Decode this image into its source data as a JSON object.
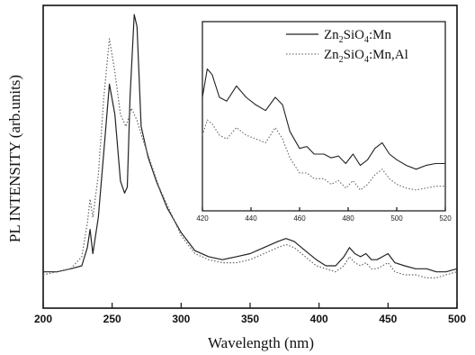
{
  "chart_data": [
    {
      "type": "line",
      "title": "",
      "xlabel": "Wavelength (nm)",
      "ylabel": "PL INTENSITY (arb.units)",
      "xlim": [
        200,
        500
      ],
      "ylim": [
        0,
        1.0
      ],
      "x_ticks": [
        "200",
        "250",
        "300",
        "350",
        "400",
        "450",
        "500"
      ],
      "y_ticks_labeled": false,
      "grid": false,
      "legend_position": "inset-top-right",
      "series": [
        {
          "name": "Zn2SiO4:Mn",
          "style": "solid",
          "color": "#222222",
          "points": [
            [
              200,
              0.12
            ],
            [
              210,
              0.12
            ],
            [
              220,
              0.13
            ],
            [
              228,
              0.14
            ],
            [
              232,
              0.2
            ],
            [
              234,
              0.26
            ],
            [
              236,
              0.18
            ],
            [
              240,
              0.3
            ],
            [
              244,
              0.52
            ],
            [
              248,
              0.74
            ],
            [
              252,
              0.64
            ],
            [
              256,
              0.42
            ],
            [
              259,
              0.38
            ],
            [
              261,
              0.4
            ],
            [
              263,
              0.7
            ],
            [
              266,
              0.97
            ],
            [
              268,
              0.93
            ],
            [
              271,
              0.6
            ],
            [
              276,
              0.5
            ],
            [
              282,
              0.42
            ],
            [
              290,
              0.33
            ],
            [
              300,
              0.25
            ],
            [
              310,
              0.19
            ],
            [
              320,
              0.17
            ],
            [
              330,
              0.16
            ],
            [
              340,
              0.17
            ],
            [
              350,
              0.18
            ],
            [
              360,
              0.2
            ],
            [
              370,
              0.22
            ],
            [
              376,
              0.23
            ],
            [
              382,
              0.22
            ],
            [
              390,
              0.19
            ],
            [
              398,
              0.16
            ],
            [
              405,
              0.14
            ],
            [
              412,
              0.14
            ],
            [
              418,
              0.17
            ],
            [
              422,
              0.2
            ],
            [
              426,
              0.18
            ],
            [
              430,
              0.17
            ],
            [
              434,
              0.18
            ],
            [
              438,
              0.16
            ],
            [
              442,
              0.16
            ],
            [
              446,
              0.17
            ],
            [
              450,
              0.18
            ],
            [
              455,
              0.15
            ],
            [
              462,
              0.14
            ],
            [
              470,
              0.13
            ],
            [
              478,
              0.13
            ],
            [
              485,
              0.12
            ],
            [
              492,
              0.12
            ],
            [
              500,
              0.13
            ]
          ]
        },
        {
          "name": "Zn2SiO4:Mn,Al",
          "style": "dotted",
          "color": "#666666",
          "points": [
            [
              200,
              0.11
            ],
            [
              210,
              0.12
            ],
            [
              220,
              0.13
            ],
            [
              228,
              0.17
            ],
            [
              232,
              0.28
            ],
            [
              234,
              0.36
            ],
            [
              236,
              0.3
            ],
            [
              240,
              0.44
            ],
            [
              244,
              0.7
            ],
            [
              248,
              0.89
            ],
            [
              252,
              0.78
            ],
            [
              256,
              0.64
            ],
            [
              260,
              0.6
            ],
            [
              264,
              0.66
            ],
            [
              268,
              0.62
            ],
            [
              272,
              0.56
            ],
            [
              278,
              0.48
            ],
            [
              284,
              0.4
            ],
            [
              292,
              0.32
            ],
            [
              300,
              0.24
            ],
            [
              310,
              0.18
            ],
            [
              320,
              0.16
            ],
            [
              330,
              0.15
            ],
            [
              340,
              0.15
            ],
            [
              350,
              0.16
            ],
            [
              360,
              0.18
            ],
            [
              370,
              0.2
            ],
            [
              376,
              0.21
            ],
            [
              382,
              0.2
            ],
            [
              390,
              0.17
            ],
            [
              398,
              0.14
            ],
            [
              405,
              0.13
            ],
            [
              412,
              0.12
            ],
            [
              418,
              0.14
            ],
            [
              422,
              0.17
            ],
            [
              426,
              0.15
            ],
            [
              430,
              0.14
            ],
            [
              434,
              0.15
            ],
            [
              438,
              0.13
            ],
            [
              442,
              0.13
            ],
            [
              446,
              0.14
            ],
            [
              450,
              0.15
            ],
            [
              455,
              0.12
            ],
            [
              462,
              0.11
            ],
            [
              470,
              0.11
            ],
            [
              478,
              0.1
            ],
            [
              485,
              0.1
            ],
            [
              492,
              0.11
            ],
            [
              500,
              0.12
            ]
          ]
        }
      ]
    },
    {
      "type": "line",
      "title": "",
      "xlabel": "",
      "ylabel": "",
      "xlim": [
        420,
        520
      ],
      "ylim": [
        0,
        1.0
      ],
      "x_ticks": [
        "420",
        "440",
        "460",
        "480",
        "500",
        "520"
      ],
      "grid": false,
      "series": [
        {
          "name": "Zn2SiO4:Mn",
          "style": "solid",
          "color": "#222222",
          "points": [
            [
              420,
              0.6
            ],
            [
              422,
              0.75
            ],
            [
              424,
              0.72
            ],
            [
              427,
              0.6
            ],
            [
              430,
              0.58
            ],
            [
              434,
              0.66
            ],
            [
              438,
              0.6
            ],
            [
              442,
              0.56
            ],
            [
              446,
              0.53
            ],
            [
              450,
              0.6
            ],
            [
              453,
              0.56
            ],
            [
              456,
              0.42
            ],
            [
              460,
              0.33
            ],
            [
              463,
              0.34
            ],
            [
              466,
              0.3
            ],
            [
              470,
              0.3
            ],
            [
              473,
              0.28
            ],
            [
              476,
              0.29
            ],
            [
              479,
              0.25
            ],
            [
              482,
              0.3
            ],
            [
              485,
              0.24
            ],
            [
              488,
              0.27
            ],
            [
              491,
              0.33
            ],
            [
              494,
              0.36
            ],
            [
              497,
              0.3
            ],
            [
              500,
              0.27
            ],
            [
              504,
              0.24
            ],
            [
              508,
              0.22
            ],
            [
              512,
              0.24
            ],
            [
              516,
              0.25
            ],
            [
              520,
              0.25
            ]
          ]
        },
        {
          "name": "Zn2SiO4:Mn,Al",
          "style": "dotted",
          "color": "#666666",
          "points": [
            [
              420,
              0.4
            ],
            [
              422,
              0.48
            ],
            [
              424,
              0.46
            ],
            [
              427,
              0.4
            ],
            [
              430,
              0.38
            ],
            [
              434,
              0.44
            ],
            [
              438,
              0.4
            ],
            [
              442,
              0.38
            ],
            [
              446,
              0.36
            ],
            [
              450,
              0.44
            ],
            [
              453,
              0.38
            ],
            [
              456,
              0.28
            ],
            [
              460,
              0.2
            ],
            [
              463,
              0.2
            ],
            [
              466,
              0.17
            ],
            [
              470,
              0.17
            ],
            [
              473,
              0.14
            ],
            [
              476,
              0.16
            ],
            [
              479,
              0.12
            ],
            [
              482,
              0.16
            ],
            [
              485,
              0.11
            ],
            [
              488,
              0.14
            ],
            [
              491,
              0.19
            ],
            [
              494,
              0.22
            ],
            [
              497,
              0.17
            ],
            [
              500,
              0.14
            ],
            [
              504,
              0.12
            ],
            [
              508,
              0.11
            ],
            [
              512,
              0.12
            ],
            [
              516,
              0.13
            ],
            [
              520,
              0.13
            ]
          ]
        }
      ]
    }
  ]
}
